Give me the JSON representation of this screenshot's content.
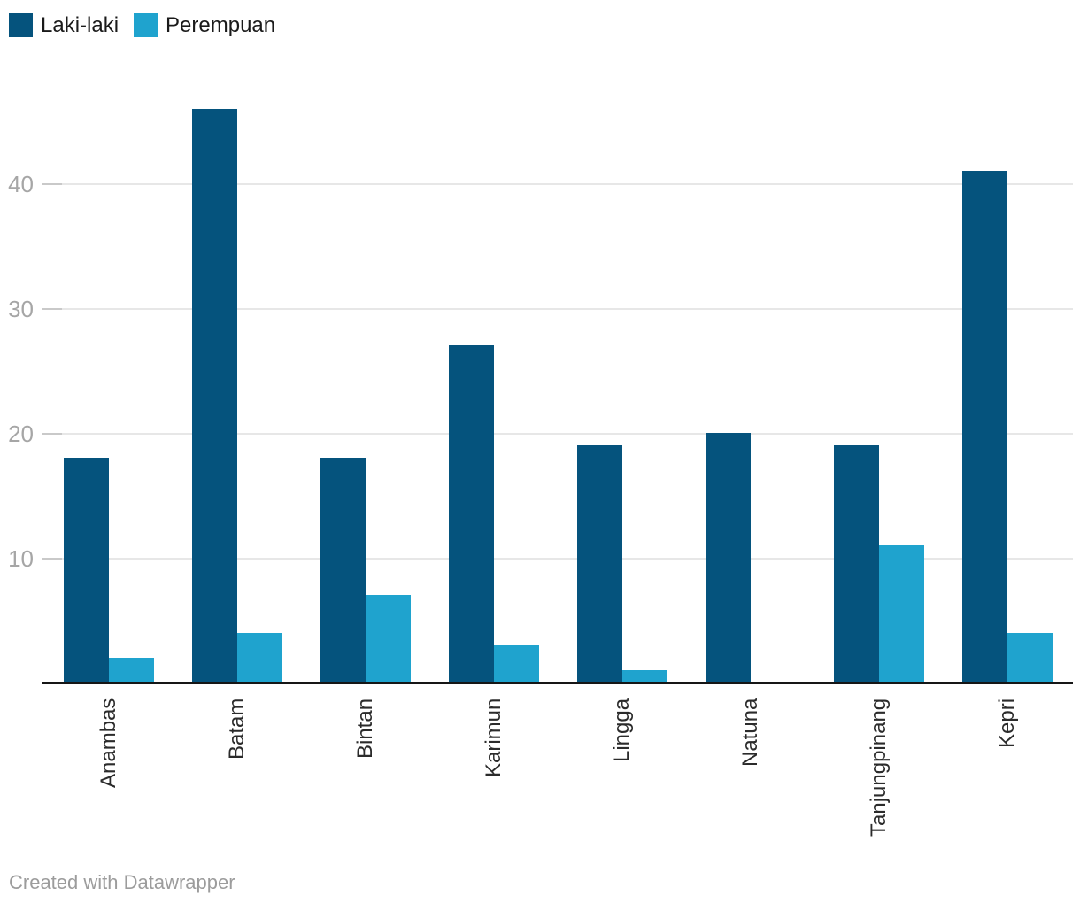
{
  "legend": {
    "items": [
      {
        "label": "Laki-laki",
        "color": "#05537D"
      },
      {
        "label": "Perempuan",
        "color": "#1FA3CE"
      }
    ]
  },
  "footer": {
    "attribution": "Created with Datawrapper"
  },
  "chart_data": {
    "type": "bar",
    "title": "",
    "xlabel": "",
    "ylabel": "",
    "categories": [
      "Anambas",
      "Batam",
      "Bintan",
      "Karimun",
      "Lingga",
      "Natuna",
      "Tanjungpinang",
      "Kepri"
    ],
    "series": [
      {
        "name": "Laki-laki",
        "color": "#05537D",
        "values": [
          18,
          46,
          18,
          27,
          19,
          20,
          19,
          41
        ]
      },
      {
        "name": "Perempuan",
        "color": "#1FA3CE",
        "values": [
          2,
          4,
          7,
          3,
          1,
          0,
          11,
          4
        ]
      }
    ],
    "yticks": [
      10,
      20,
      30,
      40
    ],
    "ylim": [
      0,
      47.5
    ],
    "grid": true,
    "legend_position": "top-left",
    "axis_colors": {
      "gridline": "#E7E7E7",
      "tick_stub": "#C9C9C9",
      "baseline": "#161616",
      "ytick_label": "#A6A6A6",
      "xtick_label": "#2B2B2B"
    }
  }
}
